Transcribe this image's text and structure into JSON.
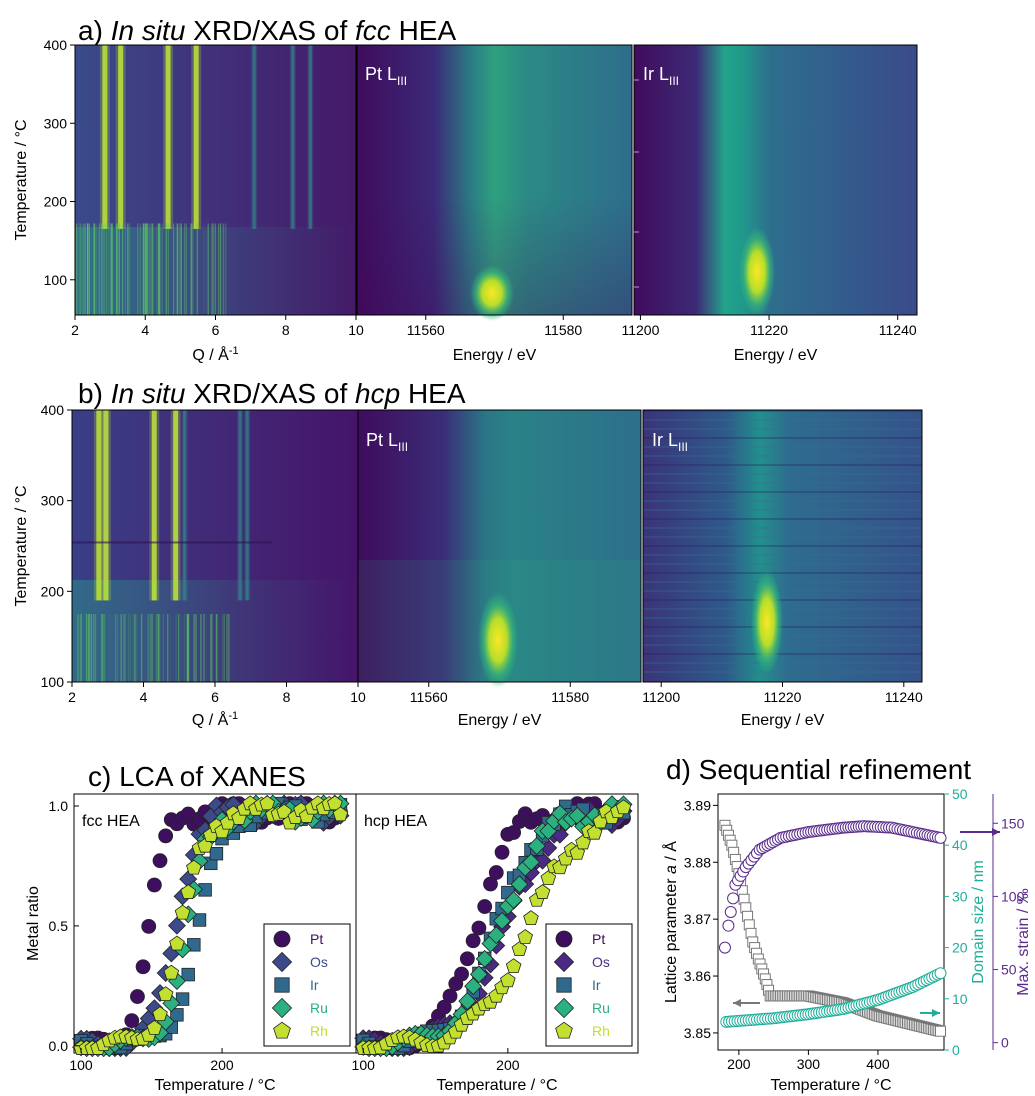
{
  "panel_titles": {
    "a": {
      "pre": "a) ",
      "i1": "In situ",
      "mid": " XRD/XAS of ",
      "i2": "fcc",
      "post": " HEA"
    },
    "b": {
      "pre": "b) ",
      "i1": "In situ",
      "mid": " XRD/XAS of ",
      "i2": "hcp",
      "post": " HEA"
    },
    "c": "c) LCA of XANES",
    "d": "d) Sequential refinement"
  },
  "axis_labels": {
    "temperature_c": "Temperature / °C",
    "q": "Q / Å",
    "q_exp": "-1",
    "energy": "Energy / eV",
    "metal_ratio": "Metal ratio",
    "temp_c_bottom": "Temperature / °C",
    "temp_c_bottom_hcp": "Temperature /  °C",
    "lattice": "Lattice parameter ",
    "lattice_a": "a",
    "lattice_unit": " / Å",
    "domain": "Domain size / nm",
    "strain": "Max. strain / ‰"
  },
  "edge_labels": {
    "pt": {
      "main": "Pt L",
      "sub": "III"
    },
    "ir": {
      "main": "Ir L",
      "sub": "III"
    }
  },
  "chart_data": [
    {
      "id": "a-xrd",
      "type": "heatmap",
      "title": "a) In situ XRD/XAS of fcc HEA",
      "xlabel": "Q / Å-1",
      "ylabel": "Temperature / °C",
      "xlim": [
        2,
        10
      ],
      "ylim": [
        55,
        400
      ],
      "xticks": [
        "2",
        "4",
        "6",
        "8",
        "10"
      ],
      "yticks": [
        "100",
        "200",
        "300",
        "400"
      ],
      "peaks_Q": [
        2.85,
        3.3,
        4.65,
        5.45,
        7.1,
        8.2,
        8.7
      ]
    },
    {
      "id": "a-pt",
      "type": "heatmap",
      "label": "Pt LIII",
      "xlabel": "Energy / eV",
      "xlim": [
        11550,
        11590
      ],
      "xticks": [
        "11560",
        "11580"
      ],
      "white_line_eV": 11565
    },
    {
      "id": "a-ir",
      "type": "heatmap",
      "label": "Ir LIII",
      "xlabel": "Energy / eV",
      "xlim": [
        11199,
        11243
      ],
      "xticks": [
        "11200",
        "11220",
        "11240"
      ],
      "white_line_eV": 11215
    },
    {
      "id": "b-xrd",
      "type": "heatmap",
      "title": "b) In situ XRD/XAS of hcp HEA",
      "xlabel": "Q / Å-1",
      "ylabel": "Temperature / °C",
      "xlim": [
        2,
        10
      ],
      "ylim": [
        100,
        400
      ],
      "xticks": [
        "2",
        "4",
        "6",
        "8",
        "10"
      ],
      "yticks": [
        "100",
        "200",
        "300",
        "400"
      ],
      "peaks_Q": [
        2.75,
        2.95,
        4.3,
        4.9,
        5.15,
        6.7,
        6.9
      ]
    },
    {
      "id": "b-pt",
      "type": "heatmap",
      "label": "Pt LIII",
      "xlabel": "Energy / eV",
      "xlim": [
        11550,
        11590
      ],
      "xticks": [
        "11560",
        "11580"
      ],
      "white_line_eV": 11565
    },
    {
      "id": "b-ir",
      "type": "heatmap",
      "label": "Ir LIII",
      "xlabel": "Energy / eV",
      "xlim": [
        11197,
        11243
      ],
      "xticks": [
        "11200",
        "11220",
        "11240"
      ],
      "white_line_eV": 11216
    },
    {
      "id": "c-fcc",
      "type": "scatter",
      "title": "c) LCA of XANES",
      "label": "fcc HEA",
      "xlabel": "Temperature / °C",
      "ylabel": "Metal ratio",
      "xlim": [
        95,
        295
      ],
      "ylim": [
        -0.03,
        1.05
      ],
      "xticks": [
        "100",
        "200"
      ],
      "yticks": [
        "0.0",
        "0.5",
        "1.0"
      ],
      "series": [
        {
          "name": "Pt",
          "color": "#3f0f5f",
          "marker": "circle",
          "t50": 148,
          "w": 6.5
        },
        {
          "name": "Os",
          "color": "#3d4a8a",
          "marker": "diamond",
          "t50": 167,
          "w": 8
        },
        {
          "name": "Ir",
          "color": "#2f6a8e",
          "marker": "square",
          "t50": 183,
          "w": 9
        },
        {
          "name": "Ru",
          "color": "#2bb07f",
          "marker": "diamond",
          "t50": 175,
          "w": 8
        },
        {
          "name": "Rh",
          "color": "#c2e02f",
          "marker": "pentagon",
          "t50": 171,
          "w": 9
        }
      ]
    },
    {
      "id": "c-hcp",
      "type": "scatter",
      "label": "hcp HEA",
      "xlabel": "Temperature /  °C",
      "xlim": [
        95,
        290
      ],
      "ylim": [
        -0.03,
        1.05
      ],
      "xticks": [
        "100",
        "200"
      ],
      "series": [
        {
          "name": "Pt",
          "color": "#3f0f5f",
          "marker": "circle",
          "t50": 178,
          "w": 12
        },
        {
          "name": "Os",
          "color": "#4b2a84",
          "marker": "diamond",
          "t50": 198,
          "w": 16
        },
        {
          "name": "Ir",
          "color": "#2f6a8e",
          "marker": "square",
          "t50": 192,
          "w": 14
        },
        {
          "name": "Ru",
          "color": "#2bb07f",
          "marker": "diamond",
          "t50": 194,
          "w": 15
        },
        {
          "name": "Rh",
          "color": "#c2e02f",
          "marker": "pentagon",
          "t50": 214,
          "w": 18
        }
      ]
    },
    {
      "id": "d",
      "type": "scatter",
      "title": "d) Sequential refinement",
      "xlabel": "Temperature / °C",
      "xlim": [
        170,
        495
      ],
      "xticks": [
        "200",
        "300",
        "400"
      ],
      "axes": [
        {
          "name": "Lattice parameter a / Å",
          "ylim": [
            3.847,
            3.892
          ],
          "yticks": [
            "3.85",
            "3.86",
            "3.87",
            "3.88",
            "3.89"
          ],
          "color": "#000000"
        },
        {
          "name": "Domain size / nm",
          "ylim": [
            0,
            50
          ],
          "yticks": [
            "0",
            "10",
            "20",
            "30",
            "40",
            "50"
          ],
          "color": "#1fae9a"
        },
        {
          "name": "Max. strain / ‰",
          "ylim": [
            -5,
            170
          ],
          "yticks": [
            "0",
            "50",
            "100",
            "150"
          ],
          "color": "#5b2c8c"
        }
      ],
      "series": [
        {
          "name": "Lattice parameter",
          "color": "#777777",
          "marker": "square",
          "points": [
            [
              180,
              3.8865
            ],
            [
              190,
              3.883
            ],
            [
              200,
              3.878
            ],
            [
              210,
              3.872
            ],
            [
              220,
              3.866
            ],
            [
              228,
              3.863
            ],
            [
              238,
              3.8595
            ],
            [
              245,
              3.8565
            ],
            [
              300,
              3.8565
            ],
            [
              350,
              3.8553
            ],
            [
              400,
              3.853
            ],
            [
              450,
              3.8515
            ],
            [
              490,
              3.8503
            ]
          ]
        },
        {
          "name": "Domain size",
          "color": "#1fae9a",
          "marker": "circle",
          "points": [
            [
              182,
              5.5
            ],
            [
              250,
              6.2
            ],
            [
              300,
              7.0
            ],
            [
              350,
              8.0
            ],
            [
              400,
              9.8
            ],
            [
              450,
              12.3
            ],
            [
              490,
              15.0
            ]
          ]
        },
        {
          "name": "Max. strain",
          "color": "#5b2c8c",
          "marker": "circle",
          "points": [
            [
              180,
              65
            ],
            [
              185,
              80
            ],
            [
              195,
              108
            ],
            [
              210,
              120
            ],
            [
              230,
              132
            ],
            [
              260,
              140
            ],
            [
              300,
              144
            ],
            [
              350,
              147
            ],
            [
              380,
              148
            ],
            [
              420,
              147
            ],
            [
              460,
              143
            ],
            [
              490,
              140
            ]
          ]
        }
      ]
    }
  ]
}
